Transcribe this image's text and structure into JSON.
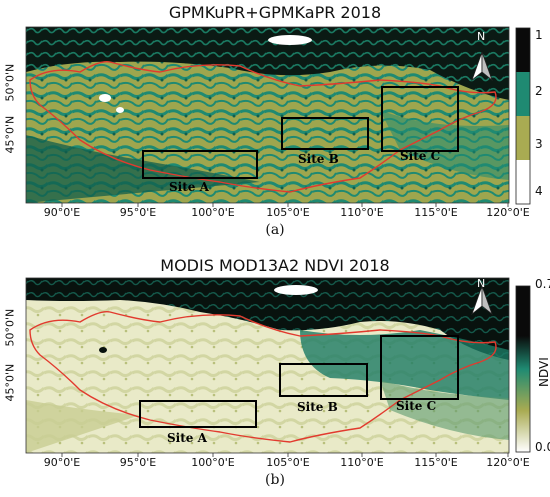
{
  "panel_a": {
    "title": "GPMKuPR+GPMKaPR 2018",
    "label": "(a)",
    "colorbar": {
      "classes": [
        "1",
        "2",
        "3",
        "4"
      ],
      "colors": [
        "#0a0a0a",
        "#1f8a72",
        "#a9ab52",
        "#ffffff"
      ]
    }
  },
  "panel_b": {
    "title": "MODIS MOD13A2 NDVI 2018",
    "label": "(b)",
    "colorbar": {
      "title": "NDVI",
      "max": "0.7",
      "min": "0.0",
      "colors": [
        "#0a0a0a",
        "#1f8a72",
        "#a9ab52",
        "#ffffff"
      ]
    }
  },
  "axes": {
    "x_ticks": [
      "90°0'E",
      "95°0'E",
      "100°0'E",
      "105°0'E",
      "110°0'E",
      "115°0'E",
      "120°0'E"
    ],
    "y_ticks": [
      "50°0'N",
      "45°0'N"
    ]
  },
  "sites": [
    "Site A",
    "Site B",
    "Site C"
  ],
  "north_arrow": {
    "label": "N"
  },
  "colors": {
    "border": "#e23a2e",
    "site_box": "#000000"
  }
}
